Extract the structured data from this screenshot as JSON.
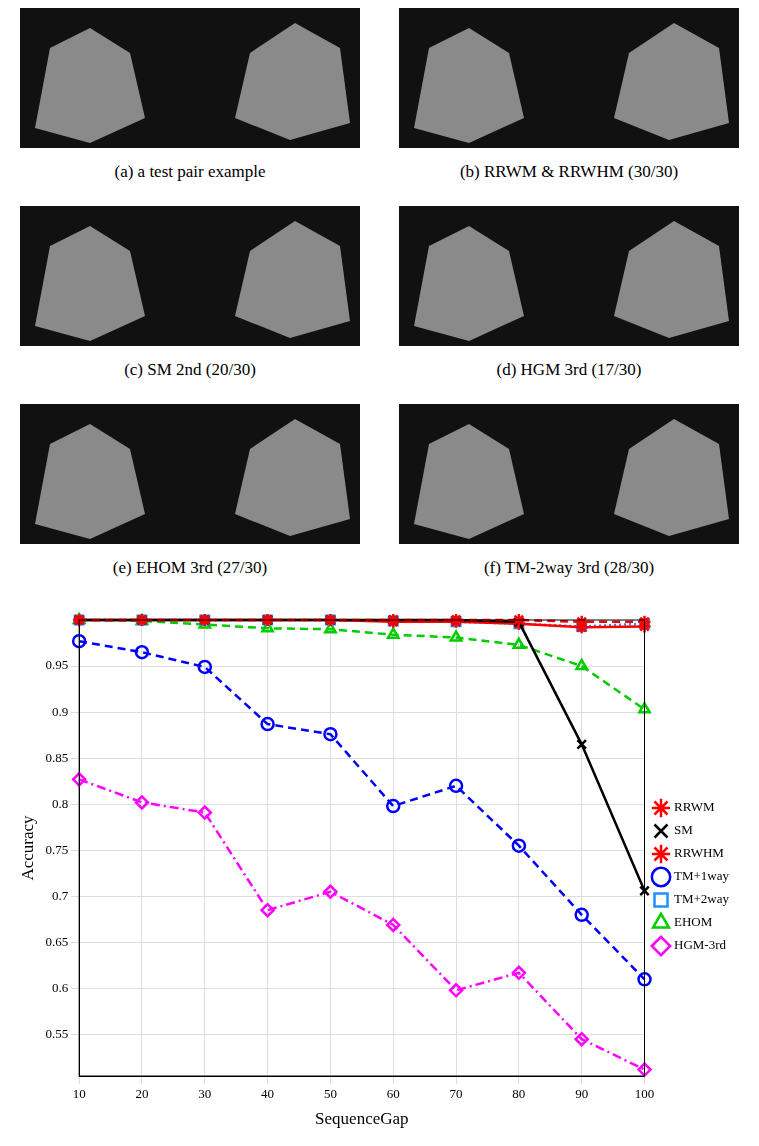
{
  "panels": [
    {
      "caption": "(a) a test pair example"
    },
    {
      "caption": "(b) RRWM & RRWHM (30/30)"
    },
    {
      "caption": "(c) SM 2nd (20/30)"
    },
    {
      "caption": "(d) HGM 3rd (17/30)"
    },
    {
      "caption": "(e) EHOM 3rd (27/30)"
    },
    {
      "caption": "(f) TM-2way 3rd (28/30)"
    }
  ],
  "chart_data": {
    "type": "line",
    "x_label": "SequenceGap",
    "y_label": "Accuracy",
    "x": [
      10,
      20,
      30,
      40,
      50,
      60,
      70,
      80,
      90,
      100
    ],
    "xlim": [
      10,
      100
    ],
    "xticks": [
      10,
      20,
      30,
      40,
      50,
      60,
      70,
      80,
      90,
      100
    ],
    "ylim": [
      0.505,
      1.0
    ],
    "yticks": [
      0.55,
      0.6,
      0.65,
      0.7,
      0.75,
      0.8,
      0.85,
      0.9,
      0.95
    ],
    "grid": true,
    "legend": "right",
    "series": [
      {
        "name": "RRWM",
        "color": "#ff0000",
        "marker": "star",
        "line_style": "dashed",
        "values": [
          1.0,
          1.0,
          1.0,
          1.0,
          1.0,
          1.0,
          1.0,
          1.0,
          0.998,
          0.998
        ]
      },
      {
        "name": "SM",
        "color": "#000000",
        "marker": "crossRot",
        "line_style": "solid",
        "values": [
          1.0,
          1.0,
          1.0,
          1.0,
          1.0,
          1.0,
          1.0,
          0.998,
          0.865,
          0.706
        ]
      },
      {
        "name": "RRWHM",
        "color": "#ff0000",
        "marker": "star",
        "line_style": "solid",
        "values": [
          1.0,
          1.0,
          1.0,
          1.0,
          1.0,
          0.998,
          0.998,
          0.996,
          0.992,
          0.993
        ]
      },
      {
        "name": "TM+1way",
        "color": "#0000ff",
        "marker": "circle",
        "line_style": "dashed",
        "values": [
          0.977,
          0.965,
          0.949,
          0.887,
          0.876,
          0.798,
          0.82,
          0.755,
          0.68,
          0.61
        ]
      },
      {
        "name": "TM+2way",
        "color": "#1e90ff",
        "marker": "rect",
        "line_style": "dotted",
        "values": [
          1.0,
          1.0,
          1.0,
          1.0,
          1.0,
          0.999,
          0.998,
          0.996,
          0.993,
          0.996
        ]
      },
      {
        "name": "EHOM",
        "color": "#00cc00",
        "marker": "triangle",
        "line_style": "dashed",
        "values": [
          1.0,
          0.999,
          0.995,
          0.991,
          0.99,
          0.984,
          0.981,
          0.973,
          0.95,
          0.903
        ]
      },
      {
        "name": "HGM-3rd",
        "color": "#ff00ff",
        "marker": "rectRot",
        "line_style": "dashdot",
        "values": [
          0.827,
          0.802,
          0.791,
          0.685,
          0.705,
          0.669,
          0.598,
          0.617,
          0.545,
          0.512
        ]
      }
    ]
  }
}
